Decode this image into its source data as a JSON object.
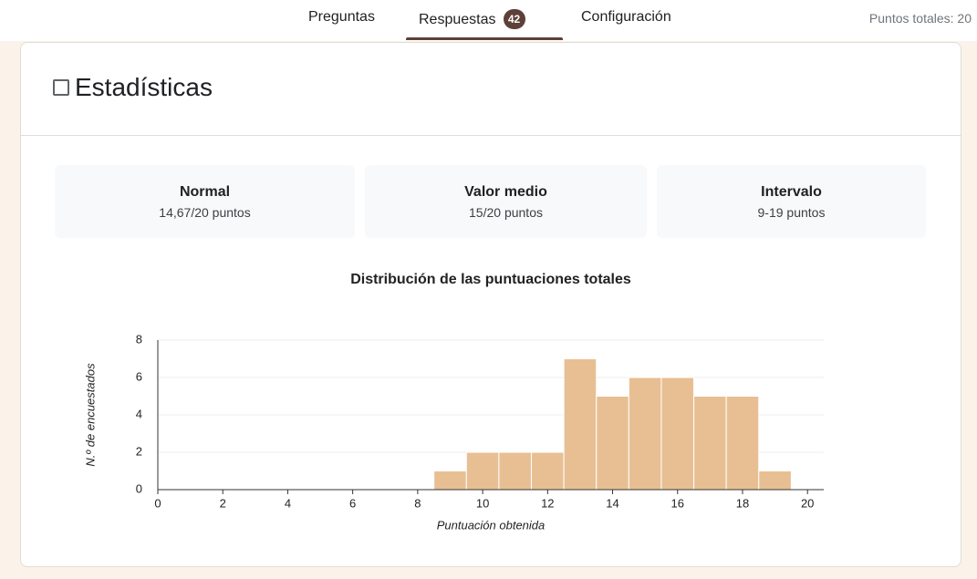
{
  "tabs": [
    {
      "label": "Preguntas"
    },
    {
      "label": "Respuestas",
      "badge": 42
    },
    {
      "label": "Configuración"
    }
  ],
  "total_points": "Puntos totales: 20",
  "section_title": "Estadísticas",
  "stats": [
    {
      "label": "Normal",
      "value": "14,67/20 puntos"
    },
    {
      "label": "Valor medio",
      "value": "15/20 puntos"
    },
    {
      "label": "Intervalo",
      "value": "9-19 puntos"
    }
  ],
  "chart_data": {
    "type": "histogram",
    "title": "Distribución de las puntuaciones totales",
    "xlabel": "Puntuación obtenida",
    "ylabel": "N.º de encuestados",
    "bins": [
      8.5,
      9.5,
      10.5,
      11.5,
      12.5,
      13.5,
      14.5,
      15.5,
      16.5,
      17.5,
      18.5,
      19.5
    ],
    "counts": [
      1,
      2,
      2,
      2,
      7,
      5,
      6,
      6,
      5,
      5,
      1
    ],
    "color": "#e8bf93",
    "xlim": [
      0,
      20.5
    ],
    "ylim": [
      0,
      8
    ],
    "xticks": [
      0,
      2,
      4,
      6,
      8,
      10,
      12,
      14,
      16,
      18,
      20
    ],
    "yticks": [
      0,
      2,
      4,
      6,
      8
    ],
    "grid": true
  }
}
